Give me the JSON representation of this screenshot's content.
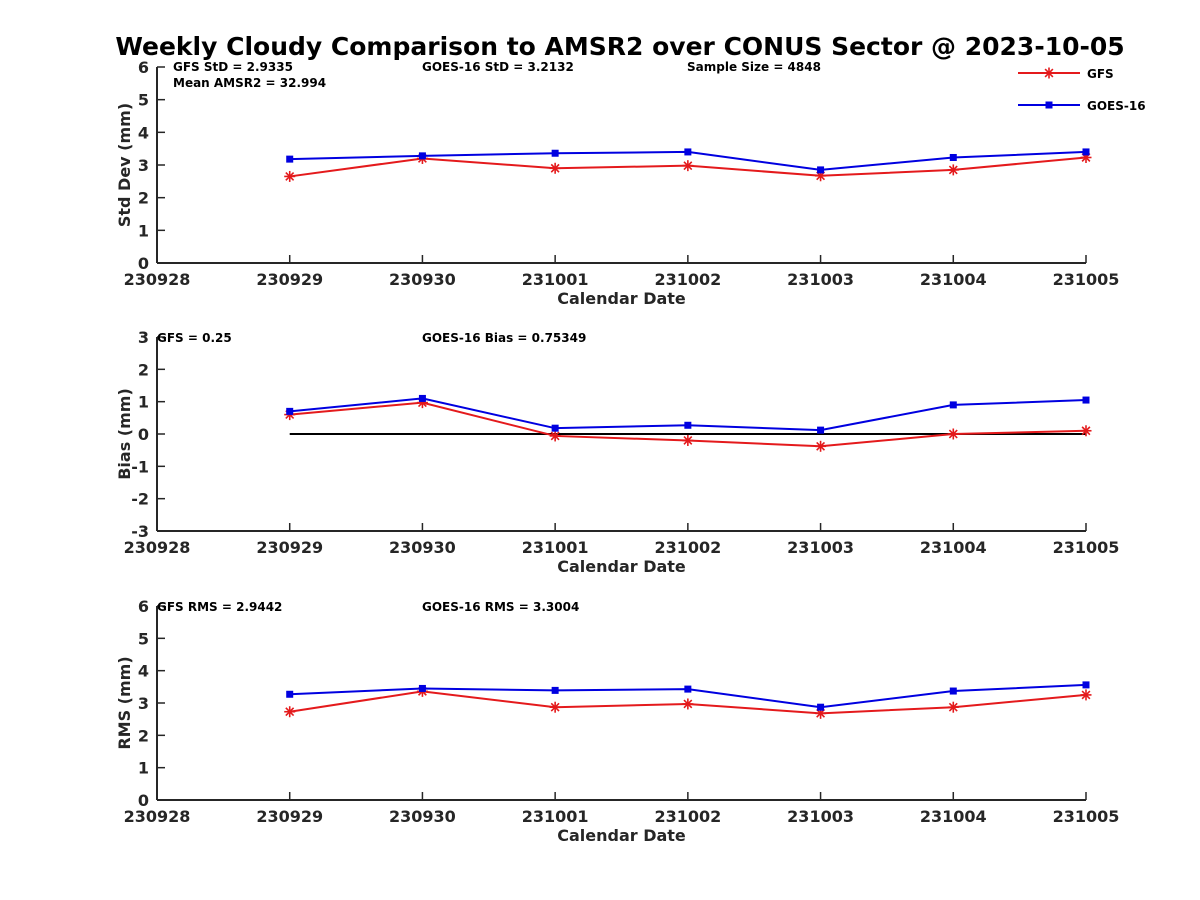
{
  "title": "Weekly Cloudy Comparison to AMSR2 over CONUS Sector @ 2023-10-05",
  "legend": {
    "placement": "top-right",
    "items": [
      {
        "name": "GFS",
        "color": "#e41a1c",
        "marker": "asterisk"
      },
      {
        "name": "GOES-16",
        "color": "#0000e0",
        "marker": "square"
      }
    ]
  },
  "colors": {
    "gfs": "#e41a1c",
    "goes16": "#0000e0",
    "zero_line": "#000000",
    "axis": "#262626"
  },
  "chart_data": [
    {
      "type": "line",
      "xlabel": "Calendar Date",
      "ylabel": "Std Dev (mm)",
      "x_ticks": [
        "230928",
        "230929",
        "230930",
        "231001",
        "231002",
        "231003",
        "231004",
        "231005"
      ],
      "y_ticks": [
        "0",
        "1",
        "2",
        "3",
        "4",
        "5",
        "6"
      ],
      "ylim": [
        0,
        6
      ],
      "categories": [
        "230929",
        "230930",
        "231001",
        "231002",
        "231003",
        "231004",
        "231005"
      ],
      "series": [
        {
          "name": "GFS",
          "values": [
            2.65,
            3.2,
            2.9,
            2.98,
            2.67,
            2.85,
            3.23
          ]
        },
        {
          "name": "GOES-16",
          "values": [
            3.18,
            3.28,
            3.36,
            3.4,
            2.85,
            3.23,
            3.4
          ]
        }
      ],
      "annotations": [
        "GFS StD = 2.9335",
        "Mean AMSR2 = 32.994",
        "GOES-16 StD = 3.2132",
        "Sample Size = 4848"
      ]
    },
    {
      "type": "line",
      "xlabel": "Calendar Date",
      "ylabel": "Bias (mm)",
      "x_ticks": [
        "230928",
        "230929",
        "230930",
        "231001",
        "231002",
        "231003",
        "231004",
        "231005"
      ],
      "y_ticks": [
        "-3",
        "-2",
        "-1",
        "0",
        "1",
        "2",
        "3"
      ],
      "ylim": [
        -3,
        3
      ],
      "zero_line": true,
      "categories": [
        "230929",
        "230930",
        "231001",
        "231002",
        "231003",
        "231004",
        "231005"
      ],
      "series": [
        {
          "name": "GFS",
          "values": [
            0.6,
            0.97,
            -0.06,
            -0.2,
            -0.38,
            0.0,
            0.1
          ]
        },
        {
          "name": "GOES-16",
          "values": [
            0.7,
            1.1,
            0.18,
            0.27,
            0.12,
            0.9,
            1.05
          ]
        }
      ],
      "annotations": [
        "GFS = 0.25",
        "GOES-16 Bias  = 0.75349"
      ]
    },
    {
      "type": "line",
      "xlabel": "Calendar Date",
      "ylabel": "RMS (mm)",
      "x_ticks": [
        "230928",
        "230929",
        "230930",
        "231001",
        "231002",
        "231003",
        "231004",
        "231005"
      ],
      "y_ticks": [
        "0",
        "1",
        "2",
        "3",
        "4",
        "5",
        "6"
      ],
      "ylim": [
        0,
        6
      ],
      "categories": [
        "230929",
        "230930",
        "231001",
        "231002",
        "231003",
        "231004",
        "231005"
      ],
      "series": [
        {
          "name": "GFS",
          "values": [
            2.73,
            3.36,
            2.87,
            2.97,
            2.68,
            2.87,
            3.25
          ]
        },
        {
          "name": "GOES-16",
          "values": [
            3.27,
            3.45,
            3.39,
            3.43,
            2.87,
            3.37,
            3.56
          ]
        }
      ],
      "annotations": [
        "GFS RMS = 2.9442",
        "GOES-16 RMS = 3.3004"
      ]
    }
  ]
}
